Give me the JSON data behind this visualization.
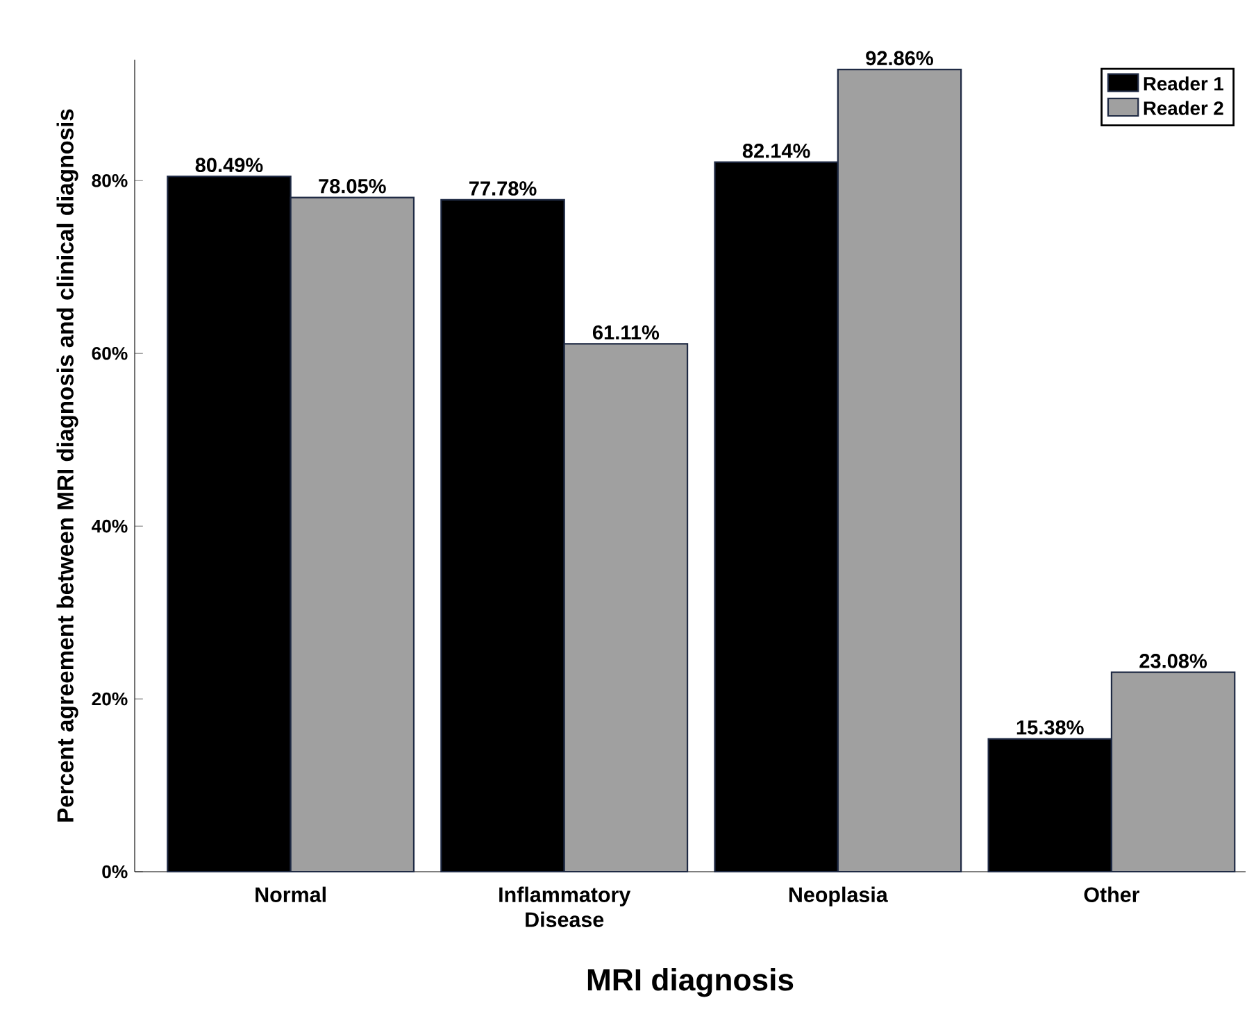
{
  "chart_data": {
    "type": "bar",
    "xlabel": "MRI diagnosis",
    "ylabel": "Percent agreement between MRI diagnosis and clinical diagnosis",
    "categories": [
      "Normal",
      "Inflammatory Disease",
      "Neoplasia",
      "Other"
    ],
    "series": [
      {
        "name": "Reader 1",
        "color": "#000000",
        "values": [
          80.49,
          77.78,
          82.14,
          15.38
        ],
        "value_labels": [
          "80.49%",
          "77.78%",
          "82.14%",
          "15.38%"
        ]
      },
      {
        "name": "Reader 2",
        "color": "#a0a0a0",
        "values": [
          78.05,
          61.11,
          92.86,
          23.08
        ],
        "value_labels": [
          "78.05%",
          "61.11%",
          "92.86%",
          "23.08%"
        ]
      }
    ],
    "ylim": [
      0,
      94
    ],
    "yticks": [
      {
        "value": 0,
        "label": "0%"
      },
      {
        "value": 20,
        "label": "20%"
      },
      {
        "value": 40,
        "label": "40%"
      },
      {
        "value": 60,
        "label": "60%"
      },
      {
        "value": 80,
        "label": "80%"
      }
    ],
    "legend": "top right",
    "grid": false
  }
}
